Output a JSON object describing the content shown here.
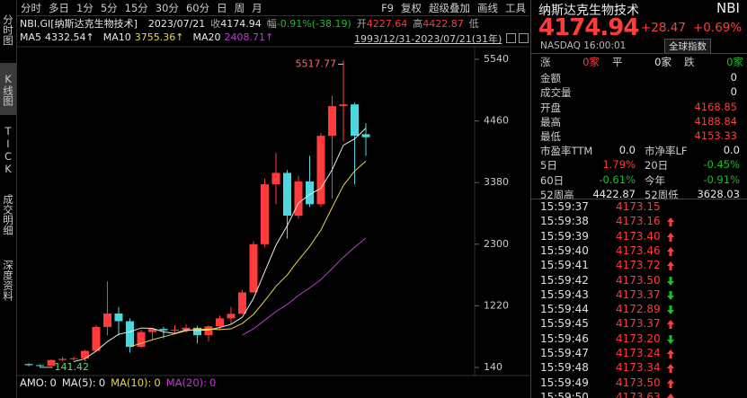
{
  "toolbar": {
    "tabs": [
      "分时",
      "多日",
      "1分",
      "5分",
      "15分",
      "30分",
      "60分",
      "日",
      "周",
      "月"
    ],
    "tools": [
      "F9",
      "复权",
      "超级叠加",
      "画线",
      "工具"
    ]
  },
  "side_tabs": [
    "分时图",
    "K线图",
    "TICK",
    "成交明细",
    "深度资料"
  ],
  "info": {
    "code": "NBI.GI[纳斯达克生物技术]",
    "date": "2023/07/21",
    "close_label": "收",
    "close": "4174.94",
    "change_label": "幅",
    "change": "-0.91%(-38.19)",
    "open_label": "开",
    "open": "4227.64",
    "high_label": "高",
    "high": "4422.87",
    "low_label": "低"
  },
  "range": "1993/12/31-2023/07/21(31年)",
  "chart_data": {
    "type": "candlestick",
    "up_color": "#ff3b3b",
    "down_color": "#4fd6dc",
    "open": [
      200,
      180,
      170,
      270,
      290,
      300,
      430,
      850,
      1085,
      950,
      500,
      760,
      815,
      790,
      800,
      835,
      705,
      860,
      1000,
      1080,
      1455,
      2300,
      3350,
      3550,
      2800,
      3400,
      3000,
      4200,
      4720,
      4750,
      4227.64
    ],
    "high": [
      210,
      190,
      280,
      320,
      330,
      450,
      880,
      1650,
      1200,
      1000,
      800,
      830,
      850,
      880,
      900,
      870,
      880,
      1050,
      1200,
      1500,
      2350,
      3450,
      3900,
      3600,
      3500,
      3850,
      4250,
      4900,
      5517.77,
      4780,
      4422.87
    ],
    "low": [
      160,
      141.42,
      165,
      250,
      260,
      250,
      420,
      700,
      700,
      400,
      480,
      640,
      650,
      720,
      750,
      560,
      600,
      800,
      900,
      1070,
      1450,
      2250,
      3000,
      2400,
      2750,
      2950,
      2950,
      3100,
      4100,
      3350,
      3850
    ],
    "close": [
      180,
      170,
      270,
      290,
      300,
      430,
      850,
      1085,
      950,
      500,
      760,
      815,
      790,
      800,
      835,
      705,
      860,
      1000,
      1080,
      1455,
      2300,
      3350,
      3550,
      2800,
      3400,
      3000,
      4200,
      4720,
      4750,
      4200,
      4174.94
    ],
    "series": [
      {
        "name": "MA5",
        "color": "#e8e8e8",
        "arrow": "↑",
        "values": [
          null,
          null,
          null,
          null,
          242,
          292,
          428,
          591,
          721,
          765,
          831,
          824,
          764,
          736,
          799,
          788,
          797,
          840,
          896,
          1020,
          1350,
          1818,
          2283,
          2623,
          3020,
          3171,
          3279,
          3604,
          4036,
          4146,
          4332.54
        ]
      },
      {
        "name": "MA10",
        "color": "#e8d64a",
        "arrow": "↑",
        "values": [
          null,
          null,
          null,
          null,
          null,
          null,
          null,
          null,
          null,
          504,
          562,
          626,
          678,
          729,
          782,
          810,
          811,
          802,
          816,
          910,
          1069,
          1308,
          1562,
          1760,
          2020,
          2261,
          2549,
          2944,
          3330,
          3583,
          3755.36
        ]
      },
      {
        "name": "MA20",
        "color": "#c03ad0",
        "arrow": "↑",
        "values": [
          null,
          null,
          null,
          null,
          null,
          null,
          null,
          null,
          null,
          null,
          null,
          null,
          null,
          null,
          null,
          null,
          null,
          null,
          null,
          707,
          815,
          967,
          1120,
          1244,
          1401,
          1535,
          1680,
          1873,
          2073,
          2246,
          2408.71
        ]
      }
    ],
    "ylim": [
      45,
      5950
    ],
    "yticks": [
      140,
      1220,
      2300,
      3380,
      4460,
      5540
    ],
    "annotations": [
      "5517.77",
      "141.42"
    ]
  },
  "volume": {
    "label": "AMO:",
    "value": "0",
    "ma": [
      {
        "name": "MA(5):",
        "value": "0",
        "color": "#e8e8e8"
      },
      {
        "name": "MA(10):",
        "value": "0",
        "color": "#e8d64a"
      },
      {
        "name": "MA(20):",
        "value": "0",
        "color": "#c03ad0"
      }
    ]
  },
  "quote": {
    "name": "纳斯达克生物技术",
    "symbol": "NBI",
    "price": "4174.94",
    "change": "+28.47",
    "change_pct": "+0.69%",
    "market_time": "NASDAQ 16:00:01",
    "button": "全球指数",
    "breadth": [
      {
        "label": "涨",
        "value": "0家",
        "tone": "up"
      },
      {
        "label": "平",
        "value": "0家",
        "tone": "flat"
      },
      {
        "label": "跌",
        "value": "0家",
        "tone": "down"
      }
    ],
    "stats": [
      [
        {
          "label": "金额",
          "value": "0",
          "tone": "flat"
        }
      ],
      [
        {
          "label": "成交量",
          "value": "0",
          "tone": "flat"
        }
      ],
      [
        {
          "label": "开盘",
          "value": "4168.85",
          "tone": "up"
        }
      ],
      [
        {
          "label": "最高",
          "value": "4188.84",
          "tone": "up"
        }
      ],
      [
        {
          "label": "最低",
          "value": "4153.33",
          "tone": "up"
        }
      ],
      [
        {
          "label": "市盈率TTM",
          "value": "0.0",
          "tone": "flat"
        },
        {
          "label": "市净率LF",
          "value": "0.0",
          "tone": "flat"
        }
      ],
      [
        {
          "label": "5日",
          "value": "1.79%",
          "tone": "up"
        },
        {
          "label": "20日",
          "value": "-0.45%",
          "tone": "down"
        }
      ],
      [
        {
          "label": "60日",
          "value": "-0.61%",
          "tone": "down"
        },
        {
          "label": "今年",
          "value": "-0.91%",
          "tone": "down"
        }
      ],
      [
        {
          "label": "52周高",
          "value": "4422.87",
          "tone": "flat"
        },
        {
          "label": "52周低",
          "value": "3628.03",
          "tone": "flat"
        }
      ]
    ]
  },
  "ticks": [
    {
      "time": "15:59:37",
      "price": "4173.15",
      "dir": null
    },
    {
      "time": "15:59:38",
      "price": "4173.16",
      "dir": "up"
    },
    {
      "time": "15:59:39",
      "price": "4173.40",
      "dir": "up"
    },
    {
      "time": "15:59:40",
      "price": "4173.46",
      "dir": "up"
    },
    {
      "time": "15:59:41",
      "price": "4173.72",
      "dir": "up"
    },
    {
      "time": "15:59:42",
      "price": "4173.50",
      "dir": "down"
    },
    {
      "time": "15:59:43",
      "price": "4173.37",
      "dir": "down"
    },
    {
      "time": "15:59:44",
      "price": "4172.89",
      "dir": "down"
    },
    {
      "time": "15:59:45",
      "price": "4173.37",
      "dir": "up"
    },
    {
      "time": "15:59:46",
      "price": "4173.20",
      "dir": "down"
    },
    {
      "time": "15:59:47",
      "price": "4173.24",
      "dir": "up"
    },
    {
      "time": "15:59:48",
      "price": "4173.34",
      "dir": "up"
    },
    {
      "time": "15:59:49",
      "price": "4173.50",
      "dir": "up"
    },
    {
      "time": "15:59:50",
      "price": "4173.63",
      "dir": "up"
    }
  ]
}
